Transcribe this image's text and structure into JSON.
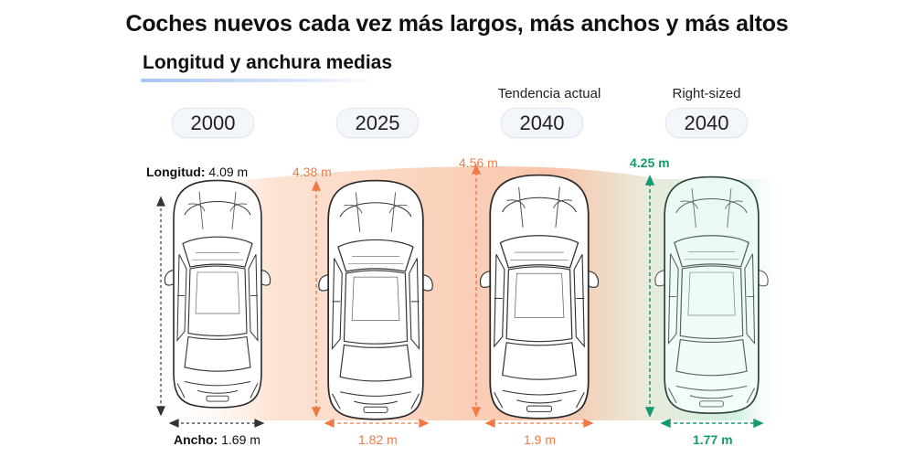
{
  "header": {
    "title": "Coches nuevos cada vez más largos, más anchos y más altos",
    "subtitle": "Longitud y anchura medias"
  },
  "scenarios": {
    "trend": "Tendencia actual",
    "rightsized": "Right-sized"
  },
  "years": [
    "2000",
    "2025",
    "2040",
    "2040"
  ],
  "labels": {
    "length_prefix": "Longitud:",
    "width_prefix": "Ancho:"
  },
  "cars": [
    {
      "year": "2000",
      "length": "4.09 m",
      "width": "1.69 m",
      "color": "#333333"
    },
    {
      "year": "2025",
      "length": "4.38 m",
      "width": "1.82 m",
      "color": "#ef7a45"
    },
    {
      "year": "2040",
      "length": "4.56 m",
      "width": "1.9 m",
      "color": "#ef7a45",
      "scenario": "Tendencia actual"
    },
    {
      "year": "2040",
      "length": "4.25 m",
      "width": "1.77 m",
      "color": "#159a70",
      "scenario": "Right-sized"
    }
  ],
  "colors": {
    "trend_accent": "#ef7a45",
    "rightsized_accent": "#159a70",
    "band_peach": "#fbd7c4",
    "band_green": "#cfeee0"
  }
}
